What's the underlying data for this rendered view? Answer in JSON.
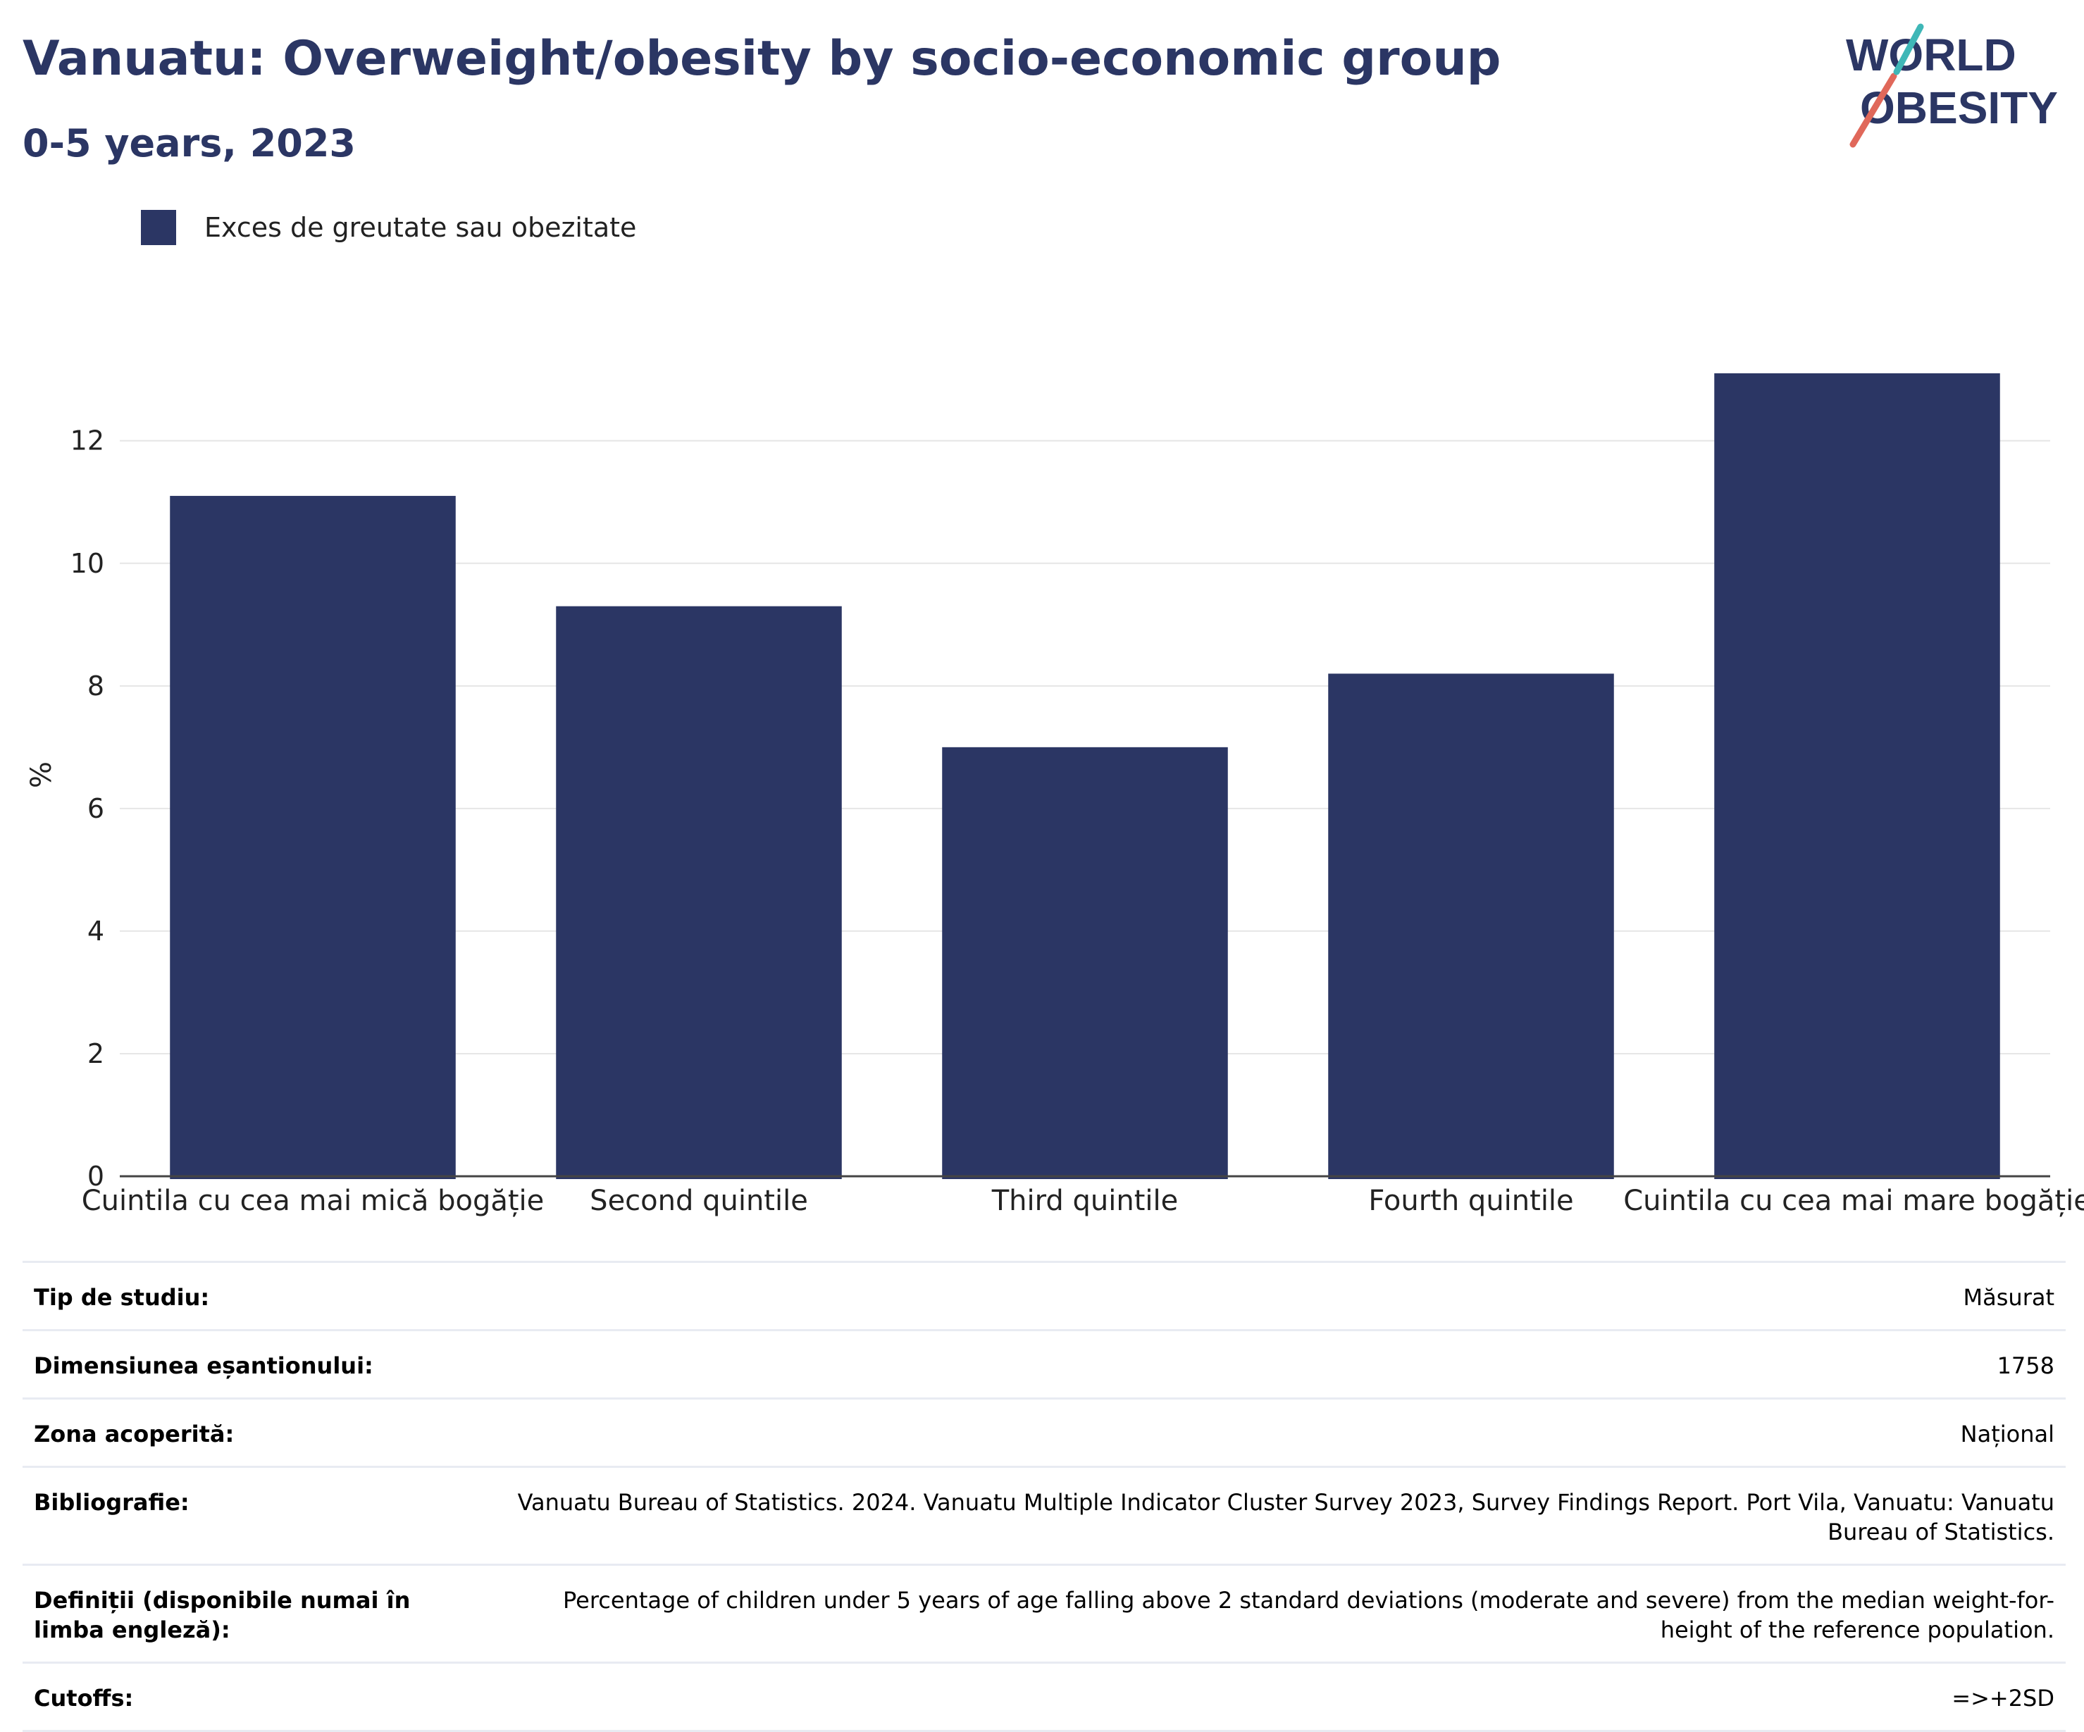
{
  "title": "Vanuatu: Overweight/obesity by socio-economic group",
  "subtitle": "0-5 years, 2023",
  "logo": {
    "line1": "WORLD",
    "line2": "OBESITY",
    "colors": [
      "#2b3664",
      "#e0685a",
      "#3fb7b7"
    ]
  },
  "legend": {
    "label": "Exces de greutate sau obezitate",
    "color": "#2b3664"
  },
  "chart_data": {
    "type": "bar",
    "categories": [
      "Cuintila cu cea mai mică bogăție",
      "Second quintile",
      "Third quintile",
      "Fourth quintile",
      "Cuintila cu cea mai mare bogăție"
    ],
    "series": [
      {
        "name": "Exces de greutate sau obezitate",
        "values": [
          11.1,
          9.3,
          7.0,
          8.2,
          13.1
        ],
        "color": "#2b3664"
      }
    ],
    "ylabel": "%",
    "xlabel": "",
    "ylim": [
      0,
      13.1
    ],
    "yticks": [
      0,
      2,
      4,
      6,
      8,
      10,
      12
    ],
    "grid": true,
    "legend_position": "top-left"
  },
  "meta": [
    {
      "key": "Tip de studiu:",
      "value": "Măsurat"
    },
    {
      "key": "Dimensiunea eșantionului:",
      "value": "1758"
    },
    {
      "key": "Zona acoperită:",
      "value": "Național"
    },
    {
      "key": "Bibliografie:",
      "value": "Vanuatu Bureau of Statistics. 2024. Vanuatu Multiple Indicator Cluster Survey 2023, Survey Findings Report. Port Vila, Vanuatu: Vanuatu Bureau of Statistics."
    },
    {
      "key": "Definiții (disponibile numai în limba engleză):",
      "value": "Percentage of children under 5 years of age falling above 2 standard deviations (moderate and severe) from the median weight-for-height of the reference population."
    },
    {
      "key": "Cutoffs:",
      "value": "=>+2SD"
    }
  ]
}
